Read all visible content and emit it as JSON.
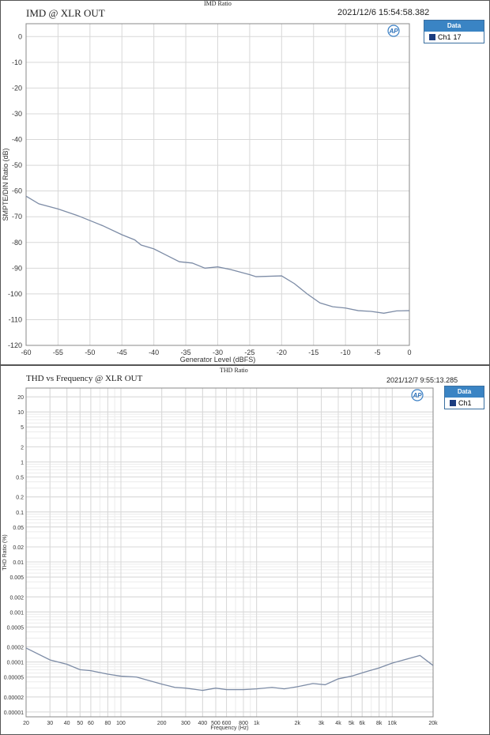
{
  "chart_data": [
    {
      "type": "line",
      "header": "IMD Ratio",
      "title": "IMD @ XLR OUT",
      "timestamp": "2021/12/6 15:54:58.382",
      "xlabel": "Generator Level (dBFS)",
      "ylabel": "SMPTE/DIN Ratio (dB)",
      "xlim": [
        -60,
        0
      ],
      "ylim": [
        -120,
        5
      ],
      "grid": true,
      "xticks": [
        -60,
        -55,
        -50,
        -45,
        -40,
        -35,
        -30,
        -25,
        -20,
        -15,
        -10,
        -5,
        0
      ],
      "yticks": [
        0,
        -10,
        -20,
        -30,
        -40,
        -50,
        -60,
        -70,
        -80,
        -90,
        -100,
        -110,
        -120
      ],
      "legend": {
        "title": "Data",
        "placement": "right",
        "entries": [
          {
            "name": "Ch1",
            "value": "17",
            "color": "#1b3d80"
          }
        ]
      },
      "series": [
        {
          "name": "Ch1",
          "color": "#7d8ca6",
          "x": [
            -60,
            -58,
            -55,
            -52,
            -50,
            -48,
            -45,
            -43,
            -42,
            -40,
            -38,
            -36,
            -34,
            -32,
            -30,
            -28,
            -25,
            -24,
            -20,
            -18,
            -16,
            -14,
            -12,
            -10,
            -8,
            -6,
            -4,
            -2,
            0
          ],
          "y": [
            -62,
            -65,
            -67,
            -69.5,
            -71.5,
            -73.5,
            -77,
            -79,
            -81,
            -82.5,
            -85,
            -87.5,
            -88,
            -90,
            -89.5,
            -90.5,
            -92.5,
            -93.3,
            -93,
            -96,
            -100,
            -103.5,
            -105,
            -105.5,
            -106.5,
            -106.8,
            -107.5,
            -106.6,
            -106.5
          ]
        }
      ]
    },
    {
      "type": "line",
      "header": "THD Ratio",
      "title": "THD vs Frequency @ XLR OUT",
      "timestamp": "2021/12/7 9:55:13.285",
      "xlabel": "Frequency (Hz)",
      "ylabel": "THD Ratio (%)",
      "xscale": "log",
      "yscale": "log",
      "xlim": [
        20,
        20000
      ],
      "ylim": [
        8e-06,
        30
      ],
      "grid": true,
      "xticks": [
        20,
        30,
        40,
        50,
        60,
        80,
        100,
        200,
        300,
        400,
        500,
        600,
        800,
        1000,
        2000,
        3000,
        4000,
        5000,
        6000,
        8000,
        10000,
        20000
      ],
      "xticklabels": [
        "20",
        "30",
        "40",
        "50",
        "60",
        "80",
        "100",
        "200",
        "300",
        "400",
        "500",
        "600",
        "800",
        "1k",
        "2k",
        "3k",
        "4k",
        "5k",
        "6k",
        "8k",
        "10k",
        "20k"
      ],
      "yticks": [
        20,
        10,
        5,
        2,
        1,
        0.5,
        0.2,
        0.1,
        0.05,
        0.02,
        0.01,
        0.005,
        0.002,
        0.001,
        0.0005,
        0.0002,
        0.0001,
        5e-05,
        2e-05,
        1e-05
      ],
      "yticklabels": [
        "20",
        "10",
        "5",
        "2",
        "1",
        "0.5",
        "0.2",
        "0.1",
        "0.05",
        "0.02",
        "0.01",
        "0.005",
        "0.002",
        "0.001",
        "0.0005",
        "0.0002",
        "0.0001",
        "0.00005",
        "0.00002",
        "0.00001"
      ],
      "legend": {
        "title": "Data",
        "placement": "right",
        "entries": [
          {
            "name": "Ch1",
            "color": "#1b3d80"
          }
        ]
      },
      "series": [
        {
          "name": "Ch1",
          "color": "#7d8ca6",
          "x": [
            20,
            30,
            40,
            50,
            60,
            80,
            100,
            130,
            200,
            250,
            300,
            400,
            500,
            600,
            800,
            1000,
            1300,
            1600,
            2000,
            2600,
            3200,
            4000,
            5000,
            6300,
            8000,
            10000,
            16000,
            20000
          ],
          "y": [
            0.00019,
            0.00011,
            9e-05,
            7e-05,
            6.7e-05,
            5.7e-05,
            5.2e-05,
            5e-05,
            3.6e-05,
            3.1e-05,
            3e-05,
            2.7e-05,
            3e-05,
            2.8e-05,
            2.8e-05,
            2.9e-05,
            3.1e-05,
            2.9e-05,
            3.2e-05,
            3.7e-05,
            3.5e-05,
            4.6e-05,
            5.2e-05,
            6.3e-05,
            7.6e-05,
            9.5e-05,
            0.000135,
            8.5e-05
          ]
        }
      ]
    }
  ]
}
